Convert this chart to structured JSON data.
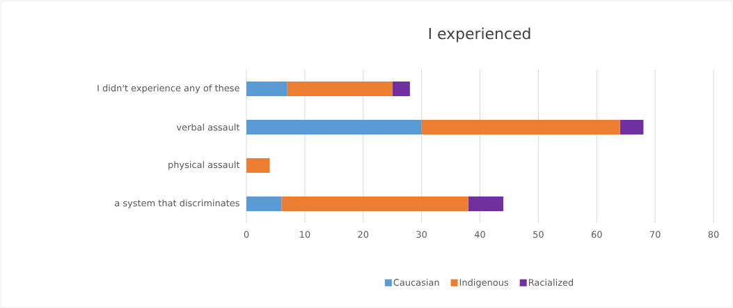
{
  "chart_data": {
    "type": "bar",
    "orientation": "horizontal",
    "stacked": true,
    "title": "I experienced",
    "categories": [
      "I didn't experience any of these",
      "verbal assault",
      "physical assault",
      "a system that discriminates"
    ],
    "series": [
      {
        "name": "Caucasian",
        "color": "#5b9bd5",
        "values": [
          7,
          30,
          0,
          6
        ]
      },
      {
        "name": "Indigenous",
        "color": "#ed7d31",
        "values": [
          18,
          34,
          4,
          32
        ]
      },
      {
        "name": "Racialized",
        "color": "#7030a0",
        "values": [
          3,
          4,
          0,
          6
        ]
      }
    ],
    "xlim": [
      0,
      80
    ],
    "xticks": [
      0,
      10,
      20,
      30,
      40,
      50,
      60,
      70,
      80
    ],
    "grid": "x",
    "legend": "bottom"
  }
}
